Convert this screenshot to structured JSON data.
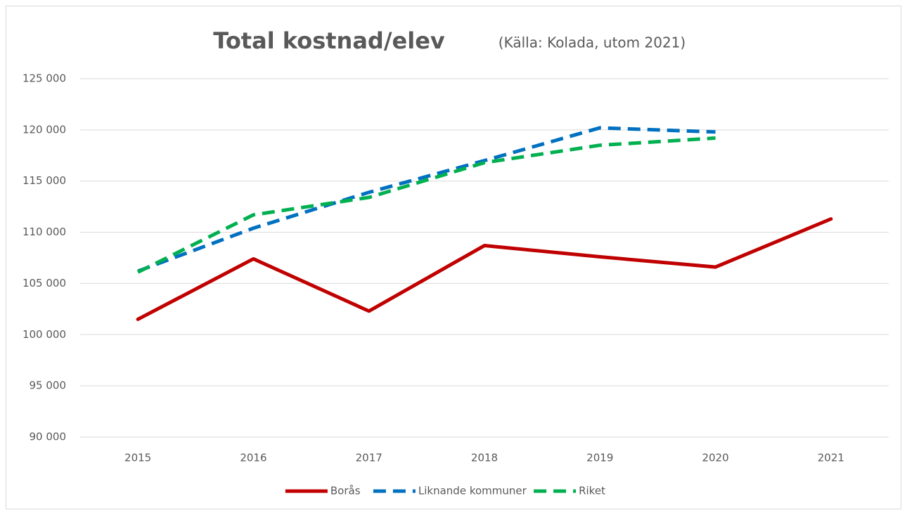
{
  "chart_data": {
    "type": "line",
    "title": "Total kostnad/elev",
    "subtitle": "(Källa: Kolada, utom 2021)",
    "categories": [
      "2015",
      "2016",
      "2017",
      "2018",
      "2019",
      "2020",
      "2021"
    ],
    "series": [
      {
        "name": "Borås",
        "color": "#c00000",
        "dashed": false,
        "values": [
          101500,
          107400,
          102300,
          108700,
          107600,
          106600,
          111300
        ]
      },
      {
        "name": "Liknande kommuner",
        "color": "#0070c0",
        "dashed": true,
        "values": [
          106200,
          110400,
          113900,
          117000,
          120200,
          119800,
          null
        ]
      },
      {
        "name": "Riket",
        "color": "#00b050",
        "dashed": true,
        "values": [
          106100,
          111700,
          113400,
          116800,
          118500,
          119200,
          null
        ]
      }
    ],
    "ylim": [
      90000,
      125000
    ],
    "yticks": [
      {
        "value": 90000,
        "label": "90 000"
      },
      {
        "value": 95000,
        "label": "95 000"
      },
      {
        "value": 100000,
        "label": "100 000"
      },
      {
        "value": 105000,
        "label": "105 000"
      },
      {
        "value": 110000,
        "label": "110 000"
      },
      {
        "value": 115000,
        "label": "115 000"
      },
      {
        "value": 120000,
        "label": "120 000"
      },
      {
        "value": 125000,
        "label": "125 000"
      }
    ],
    "grid": true,
    "legend": "bottom"
  }
}
